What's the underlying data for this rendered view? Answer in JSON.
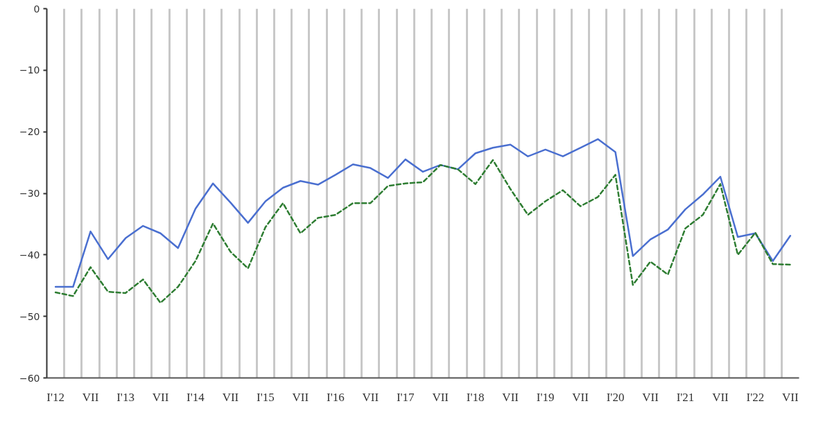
{
  "chart_data": {
    "type": "line",
    "categories": [
      "I'12",
      null,
      "VII",
      null,
      "I'13",
      null,
      "VII",
      null,
      "I'14",
      null,
      "VII",
      null,
      "I'15",
      null,
      "VII",
      null,
      "I'16",
      null,
      "VII",
      null,
      "I'17",
      null,
      "VII",
      null,
      "I'18",
      null,
      "VII",
      null,
      "I'19",
      null,
      "VII",
      null,
      "I'20",
      null,
      "VII",
      null,
      "I'21",
      null,
      "VII",
      null,
      "I'22",
      null,
      "VII"
    ],
    "ylim": [
      -60,
      0
    ],
    "yticks": [
      -60,
      -50,
      -40,
      -30,
      -20,
      -10,
      0
    ],
    "grid": "x",
    "series": [
      {
        "color": "#4a6fd0",
        "line_style": "solid",
        "values": [
          -45.2,
          -45.2,
          -36.2,
          -40.7,
          -37.3,
          -35.3,
          -36.5,
          -38.9,
          -32.5,
          -28.4,
          -31.5,
          -34.8,
          -31.3,
          -29.1,
          -28.0,
          -28.6,
          -27.0,
          -25.3,
          -25.9,
          -27.5,
          -24.5,
          -26.5,
          -25.4,
          -26.1,
          -23.5,
          -22.6,
          -22.1,
          -24.0,
          -22.9,
          -24.0,
          -22.6,
          -21.2,
          -23.3,
          -40.2,
          -37.5,
          -35.9,
          -32.6,
          -30.2,
          -27.3,
          -37.1,
          -36.5,
          -41.0,
          -36.9
        ]
      },
      {
        "color": "#2e7d32",
        "line_style": "dashed",
        "values": [
          -46.1,
          -46.7,
          -42.0,
          -46.0,
          -46.2,
          -44.0,
          -47.8,
          -45.2,
          -41.0,
          -34.9,
          -39.5,
          -42.2,
          -35.5,
          -31.6,
          -36.5,
          -34.0,
          -33.5,
          -31.6,
          -31.6,
          -28.8,
          -28.4,
          -28.2,
          -25.4,
          -26.1,
          -28.5,
          -24.6,
          -29.3,
          -33.5,
          -31.3,
          -29.5,
          -32.1,
          -30.6,
          -27.0,
          -44.9,
          -41.1,
          -43.2,
          -35.7,
          -33.5,
          -28.5,
          -40.0,
          -36.4,
          -41.5,
          -41.6
        ]
      }
    ]
  }
}
